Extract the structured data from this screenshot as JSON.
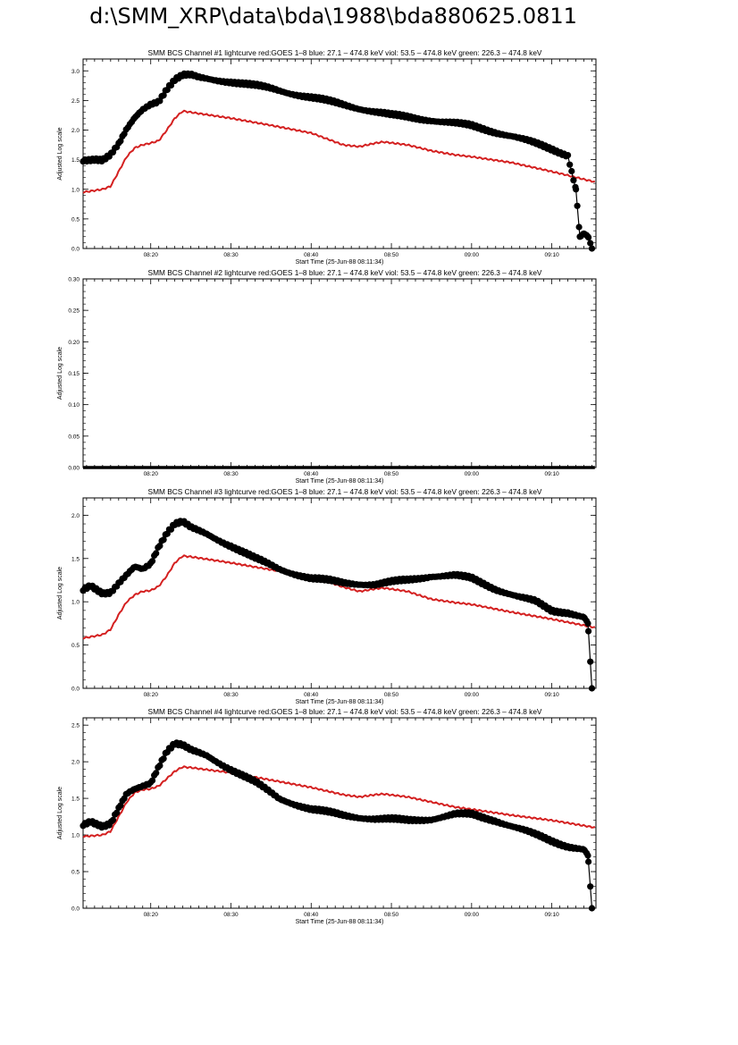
{
  "page_title": "d:\\SMM_XRP\\data\\bda\\1988\\bda880625.0811",
  "colors": {
    "goes": "#d42020",
    "bcs": "#000000",
    "axis": "#000000"
  },
  "chart_data": [
    {
      "type": "scatter",
      "title": "SMM BCS Channel #1 lightcurve  red:GOES 1–8  blue: 27.1 – 474.8 keV  viol: 53.5 – 474.8 keV  green: 226.3 – 474.8 keV",
      "xlabel": "Start Time (25-Jun-88 08:11:34)",
      "ylabel": "Adjusted Log scale",
      "xlim": [
        "08:11:34",
        "09:15:30"
      ],
      "ylim": [
        0,
        3.2
      ],
      "x_ticks": [
        "08:20",
        "08:30",
        "08:40",
        "08:50",
        "09:00",
        "09:10"
      ],
      "y_ticks": [
        "0.0",
        "0.5",
        "1.0",
        "1.5",
        "2.0",
        "2.5",
        "3.0"
      ],
      "series": [
        {
          "name": "GOES 1–8",
          "color": "#d42020",
          "style": "line",
          "x": [
            "08:11:34",
            "08:14:00",
            "08:15:00",
            "08:16:00",
            "08:17:00",
            "08:18:00",
            "08:19:00",
            "08:20:00",
            "08:21:00",
            "08:22:00",
            "08:23:00",
            "08:24:00",
            "08:25:00",
            "08:30:00",
            "08:35:00",
            "08:40:00",
            "08:44:00",
            "08:46:00",
            "08:48:00",
            "08:49:00",
            "08:52:00",
            "08:55:00",
            "08:58:00",
            "09:00:00",
            "09:05:00",
            "09:10:00",
            "09:15:30"
          ],
          "y": [
            0.95,
            1.0,
            1.05,
            1.3,
            1.55,
            1.7,
            1.75,
            1.78,
            1.82,
            2.0,
            2.2,
            2.32,
            2.3,
            2.2,
            2.08,
            1.95,
            1.75,
            1.72,
            1.78,
            1.8,
            1.75,
            1.65,
            1.58,
            1.55,
            1.45,
            1.3,
            1.12
          ]
        },
        {
          "name": "BCS Channel #1",
          "color": "#000000",
          "style": "dots",
          "x": [
            "08:11:34",
            "08:13:00",
            "08:14:00",
            "08:15:00",
            "08:16:00",
            "08:17:00",
            "08:18:00",
            "08:19:00",
            "08:20:00",
            "08:21:00",
            "08:22:00",
            "08:23:00",
            "08:24:00",
            "08:25:00",
            "08:26:00",
            "08:30:00",
            "08:35:00",
            "08:40:00",
            "08:45:00",
            "08:50:00",
            "08:55:00",
            "09:00:00",
            "09:05:00",
            "09:10:00",
            "09:12:00",
            "09:13:00",
            "09:13:30",
            "09:14:00",
            "09:14:30",
            "09:15:00"
          ],
          "y": [
            1.5,
            1.52,
            1.5,
            1.58,
            1.75,
            2.0,
            2.2,
            2.35,
            2.45,
            2.5,
            2.7,
            2.85,
            2.92,
            2.92,
            2.88,
            2.82,
            2.7,
            2.55,
            2.4,
            2.25,
            2.17,
            2.07,
            1.9,
            1.68,
            1.58,
            1.0,
            0.2,
            0.25,
            0.2,
            0.0
          ]
        }
      ]
    },
    {
      "type": "scatter",
      "title": "SMM BCS Channel #2 lightcurve  red:GOES 1–8  blue: 27.1 – 474.8 keV  viol: 53.5 – 474.8 keV  green: 226.3 – 474.8 keV",
      "xlabel": "Start Time (25-Jun-88 08:11:34)",
      "ylabel": "Adjusted Log scale",
      "xlim": [
        "08:11:34",
        "09:15:30"
      ],
      "ylim": [
        0,
        0.3
      ],
      "x_ticks": [
        "08:20",
        "08:30",
        "08:40",
        "08:50",
        "09:00",
        "09:10"
      ],
      "y_ticks": [
        "0.00",
        "0.05",
        "0.10",
        "0.15",
        "0.20",
        "0.25",
        "0.30"
      ],
      "series": [
        {
          "name": "BCS Channel #2",
          "color": "#000000",
          "style": "flat",
          "x": [
            "08:11:34",
            "09:15:30"
          ],
          "y": [
            0.0,
            0.0
          ]
        }
      ]
    },
    {
      "type": "scatter",
      "title": "SMM BCS Channel #3 lightcurve  red:GOES 1–8  blue: 27.1 – 474.8 keV  viol: 53.5 – 474.8 keV  green: 226.3 – 474.8 keV",
      "xlabel": "Start Time (25-Jun-88 08:11:34)",
      "ylabel": "Adjusted Log scale",
      "xlim": [
        "08:11:34",
        "09:15:30"
      ],
      "ylim": [
        0,
        2.2
      ],
      "x_ticks": [
        "08:20",
        "08:30",
        "08:40",
        "08:50",
        "09:00",
        "09:10"
      ],
      "y_ticks": [
        "0.0",
        "0.5",
        "1.0",
        "1.5",
        "2.0"
      ],
      "series": [
        {
          "name": "GOES 1–8",
          "color": "#d42020",
          "style": "line",
          "x": [
            "08:11:34",
            "08:14:00",
            "08:15:00",
            "08:16:00",
            "08:17:00",
            "08:18:00",
            "08:19:00",
            "08:20:00",
            "08:21:00",
            "08:22:00",
            "08:23:00",
            "08:24:00",
            "08:25:00",
            "08:30:00",
            "08:35:00",
            "08:40:00",
            "08:44:00",
            "08:46:00",
            "08:48:00",
            "08:49:00",
            "08:52:00",
            "08:55:00",
            "08:58:00",
            "09:00:00",
            "09:05:00",
            "09:10:00",
            "09:15:30"
          ],
          "y": [
            0.58,
            0.62,
            0.68,
            0.85,
            1.0,
            1.08,
            1.12,
            1.13,
            1.18,
            1.3,
            1.45,
            1.53,
            1.52,
            1.45,
            1.37,
            1.3,
            1.17,
            1.12,
            1.15,
            1.16,
            1.12,
            1.03,
            0.99,
            0.97,
            0.88,
            0.8,
            0.7
          ]
        },
        {
          "name": "BCS Channel #3",
          "color": "#000000",
          "style": "dots",
          "x": [
            "08:11:34",
            "08:12:30",
            "08:14:00",
            "08:15:00",
            "08:16:00",
            "08:17:00",
            "08:18:00",
            "08:19:00",
            "08:20:00",
            "08:21:00",
            "08:22:00",
            "08:23:00",
            "08:24:00",
            "08:25:00",
            "08:27:00",
            "08:30:00",
            "08:33:00",
            "08:36:00",
            "08:40:00",
            "08:44:00",
            "08:48:00",
            "08:52:00",
            "08:55:00",
            "08:58:00",
            "09:00:00",
            "09:03:00",
            "09:06:00",
            "09:08:00",
            "09:10:00",
            "09:12:00",
            "09:14:00",
            "09:14:30",
            "09:15:00"
          ],
          "y": [
            1.15,
            1.2,
            1.1,
            1.1,
            1.2,
            1.3,
            1.4,
            1.38,
            1.45,
            1.65,
            1.8,
            1.9,
            1.92,
            1.85,
            1.78,
            1.65,
            1.5,
            1.38,
            1.27,
            1.22,
            1.2,
            1.25,
            1.3,
            1.3,
            1.27,
            1.15,
            1.05,
            1.0,
            0.9,
            0.88,
            0.82,
            0.75,
            0.0
          ]
        }
      ]
    },
    {
      "type": "scatter",
      "title": "SMM BCS Channel #4 lightcurve  red:GOES 1–8  blue: 27.1 – 474.8 keV  viol: 53.5 – 474.8 keV  green: 226.3 – 474.8 keV",
      "xlabel": "Start Time (25-Jun-88 08:11:34)",
      "ylabel": "Adjusted Log scale",
      "xlim": [
        "08:11:34",
        "09:15:30"
      ],
      "ylim": [
        0,
        2.6
      ],
      "x_ticks": [
        "08:20",
        "08:30",
        "08:40",
        "08:50",
        "09:00",
        "09:10"
      ],
      "y_ticks": [
        "0.0",
        "0.5",
        "1.0",
        "1.5",
        "2.0",
        "2.5"
      ],
      "series": [
        {
          "name": "GOES 1–8",
          "color": "#d42020",
          "style": "line",
          "x": [
            "08:11:34",
            "08:14:00",
            "08:15:00",
            "08:16:00",
            "08:17:00",
            "08:18:00",
            "08:19:00",
            "08:20:00",
            "08:21:00",
            "08:22:00",
            "08:23:00",
            "08:24:00",
            "08:25:00",
            "08:30:00",
            "08:35:00",
            "08:40:00",
            "08:44:00",
            "08:46:00",
            "08:48:00",
            "08:49:00",
            "08:52:00",
            "08:55:00",
            "08:58:00",
            "09:00:00",
            "09:05:00",
            "09:10:00",
            "09:15:30"
          ],
          "y": [
            0.98,
            1.0,
            1.05,
            1.25,
            1.45,
            1.58,
            1.62,
            1.63,
            1.67,
            1.77,
            1.87,
            1.93,
            1.92,
            1.85,
            1.75,
            1.65,
            1.55,
            1.52,
            1.55,
            1.56,
            1.52,
            1.45,
            1.38,
            1.35,
            1.27,
            1.2,
            1.1
          ]
        },
        {
          "name": "BCS Channel #4",
          "color": "#000000",
          "style": "dots",
          "x": [
            "08:11:34",
            "08:12:30",
            "08:14:00",
            "08:15:00",
            "08:16:00",
            "08:17:00",
            "08:18:00",
            "08:19:00",
            "08:20:00",
            "08:21:00",
            "08:22:00",
            "08:23:00",
            "08:24:00",
            "08:25:00",
            "08:27:00",
            "08:30:00",
            "08:33:00",
            "08:36:00",
            "08:40:00",
            "08:44:00",
            "08:48:00",
            "08:52:00",
            "08:55:00",
            "08:58:00",
            "09:00:00",
            "09:03:00",
            "09:06:00",
            "09:08:00",
            "09:10:00",
            "09:12:00",
            "09:14:00",
            "09:14:30",
            "09:15:00"
          ],
          "y": [
            1.15,
            1.2,
            1.12,
            1.15,
            1.35,
            1.55,
            1.62,
            1.67,
            1.72,
            1.95,
            2.15,
            2.25,
            2.22,
            2.15,
            2.08,
            1.9,
            1.72,
            1.5,
            1.35,
            1.27,
            1.22,
            1.2,
            1.22,
            1.28,
            1.28,
            1.2,
            1.08,
            1.0,
            0.92,
            0.85,
            0.8,
            0.72,
            0.0
          ]
        }
      ]
    }
  ]
}
